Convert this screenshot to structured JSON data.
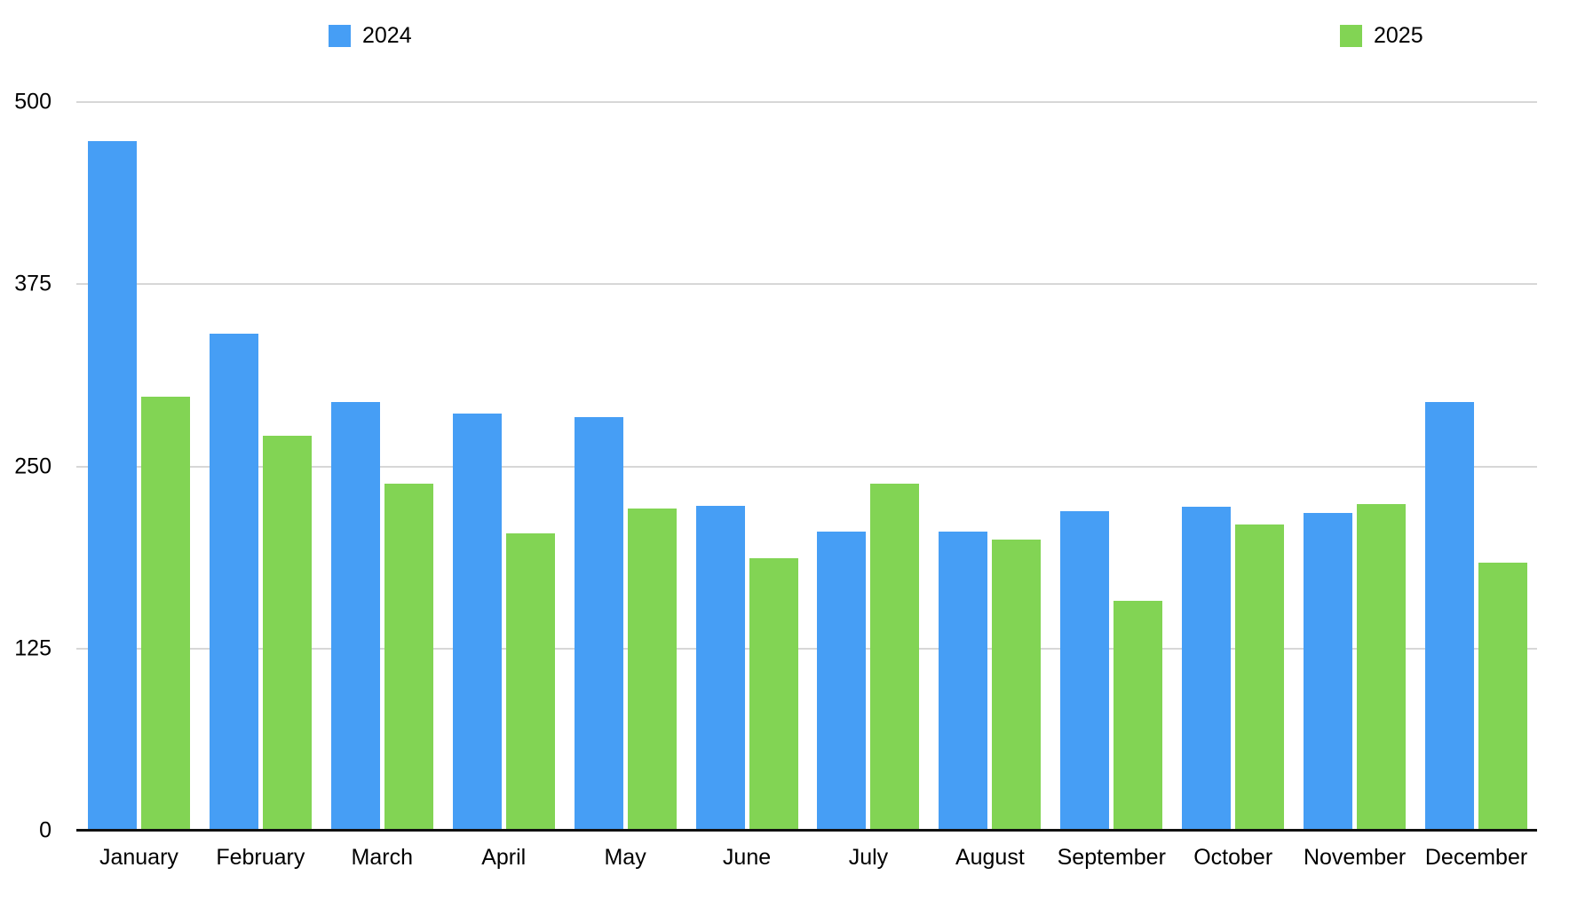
{
  "legend": {
    "position": "top",
    "items": [
      {
        "label": "2024",
        "color": "#469ef5"
      },
      {
        "label": "2025",
        "color": "#82d454"
      }
    ]
  },
  "chart_data": {
    "type": "bar",
    "title": "",
    "xlabel": "",
    "ylabel": "",
    "categories": [
      "January",
      "February",
      "March",
      "April",
      "May",
      "June",
      "July",
      "August",
      "September",
      "October",
      "November",
      "December"
    ],
    "series": [
      {
        "name": "2024",
        "color": "#469ef5",
        "values": [
          473,
          341,
          294,
          286,
          284,
          223,
          205,
          205,
          219,
          222,
          218,
          294
        ]
      },
      {
        "name": "2025",
        "color": "#82d454",
        "values": [
          298,
          271,
          238,
          204,
          221,
          187,
          238,
          200,
          158,
          210,
          224,
          184
        ]
      }
    ],
    "ylim": [
      0,
      500
    ],
    "yticks": [
      0,
      125,
      250,
      375,
      500
    ],
    "grid": true,
    "legend_position": "top"
  },
  "colors": {
    "background": "#ffffff",
    "gridline": "#d7d7d7",
    "axis_line": "#111111",
    "label_text": "#000000"
  }
}
